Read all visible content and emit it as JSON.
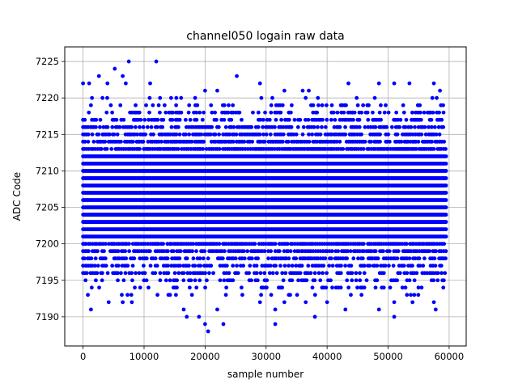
{
  "chart_data": {
    "type": "scatter",
    "title": "channel050 logain raw data",
    "xlabel": "sample number",
    "ylabel": "ADC Code",
    "xlim": [
      -3000,
      62800
    ],
    "ylim": [
      7186,
      7227
    ],
    "xticks": [
      0,
      10000,
      20000,
      30000,
      40000,
      50000,
      60000
    ],
    "yticks": [
      7190,
      7195,
      7200,
      7205,
      7210,
      7215,
      7220,
      7225
    ],
    "grid": true,
    "legend": "none",
    "marker_color": "#0000ff",
    "x_extent": [
      0,
      59500
    ],
    "series": [
      {
        "band_levels": [
          7193,
          7194,
          7195,
          7196,
          7197,
          7198,
          7199,
          7200,
          7201,
          7202,
          7203,
          7204,
          7205,
          7206,
          7207,
          7208,
          7209,
          7210,
          7211,
          7212,
          7213,
          7214,
          7215,
          7216,
          7217,
          7218,
          7219,
          7220
        ],
        "outliers": [
          [
            7500,
            7225
          ],
          [
            12000,
            7225
          ],
          [
            5200,
            7224
          ],
          [
            25200,
            7223
          ],
          [
            6500,
            7223
          ],
          [
            2600,
            7223
          ],
          [
            0,
            7222
          ],
          [
            1000,
            7222
          ],
          [
            4000,
            7222
          ],
          [
            7000,
            7222
          ],
          [
            11000,
            7222
          ],
          [
            29000,
            7222
          ],
          [
            43500,
            7222
          ],
          [
            48500,
            7222
          ],
          [
            51000,
            7222
          ],
          [
            53500,
            7222
          ],
          [
            57500,
            7222
          ],
          [
            20000,
            7221
          ],
          [
            22000,
            7221
          ],
          [
            33000,
            7221
          ],
          [
            36000,
            7221
          ],
          [
            37000,
            7221
          ],
          [
            58500,
            7221
          ],
          [
            8000,
            7192
          ],
          [
            6500,
            7192
          ],
          [
            29000,
            7192
          ],
          [
            33000,
            7192
          ],
          [
            36500,
            7192
          ],
          [
            40000,
            7192
          ],
          [
            51000,
            7192
          ],
          [
            54000,
            7192
          ],
          [
            57500,
            7192
          ],
          [
            4200,
            7192
          ],
          [
            1300,
            7191
          ],
          [
            16500,
            7191
          ],
          [
            22000,
            7191
          ],
          [
            31500,
            7191
          ],
          [
            43000,
            7191
          ],
          [
            48500,
            7191
          ],
          [
            57800,
            7191
          ],
          [
            17000,
            7190
          ],
          [
            19000,
            7190
          ],
          [
            38000,
            7190
          ],
          [
            51000,
            7190
          ],
          [
            20000,
            7189
          ],
          [
            23000,
            7189
          ],
          [
            31500,
            7189
          ],
          [
            20500,
            7188
          ]
        ]
      }
    ]
  }
}
